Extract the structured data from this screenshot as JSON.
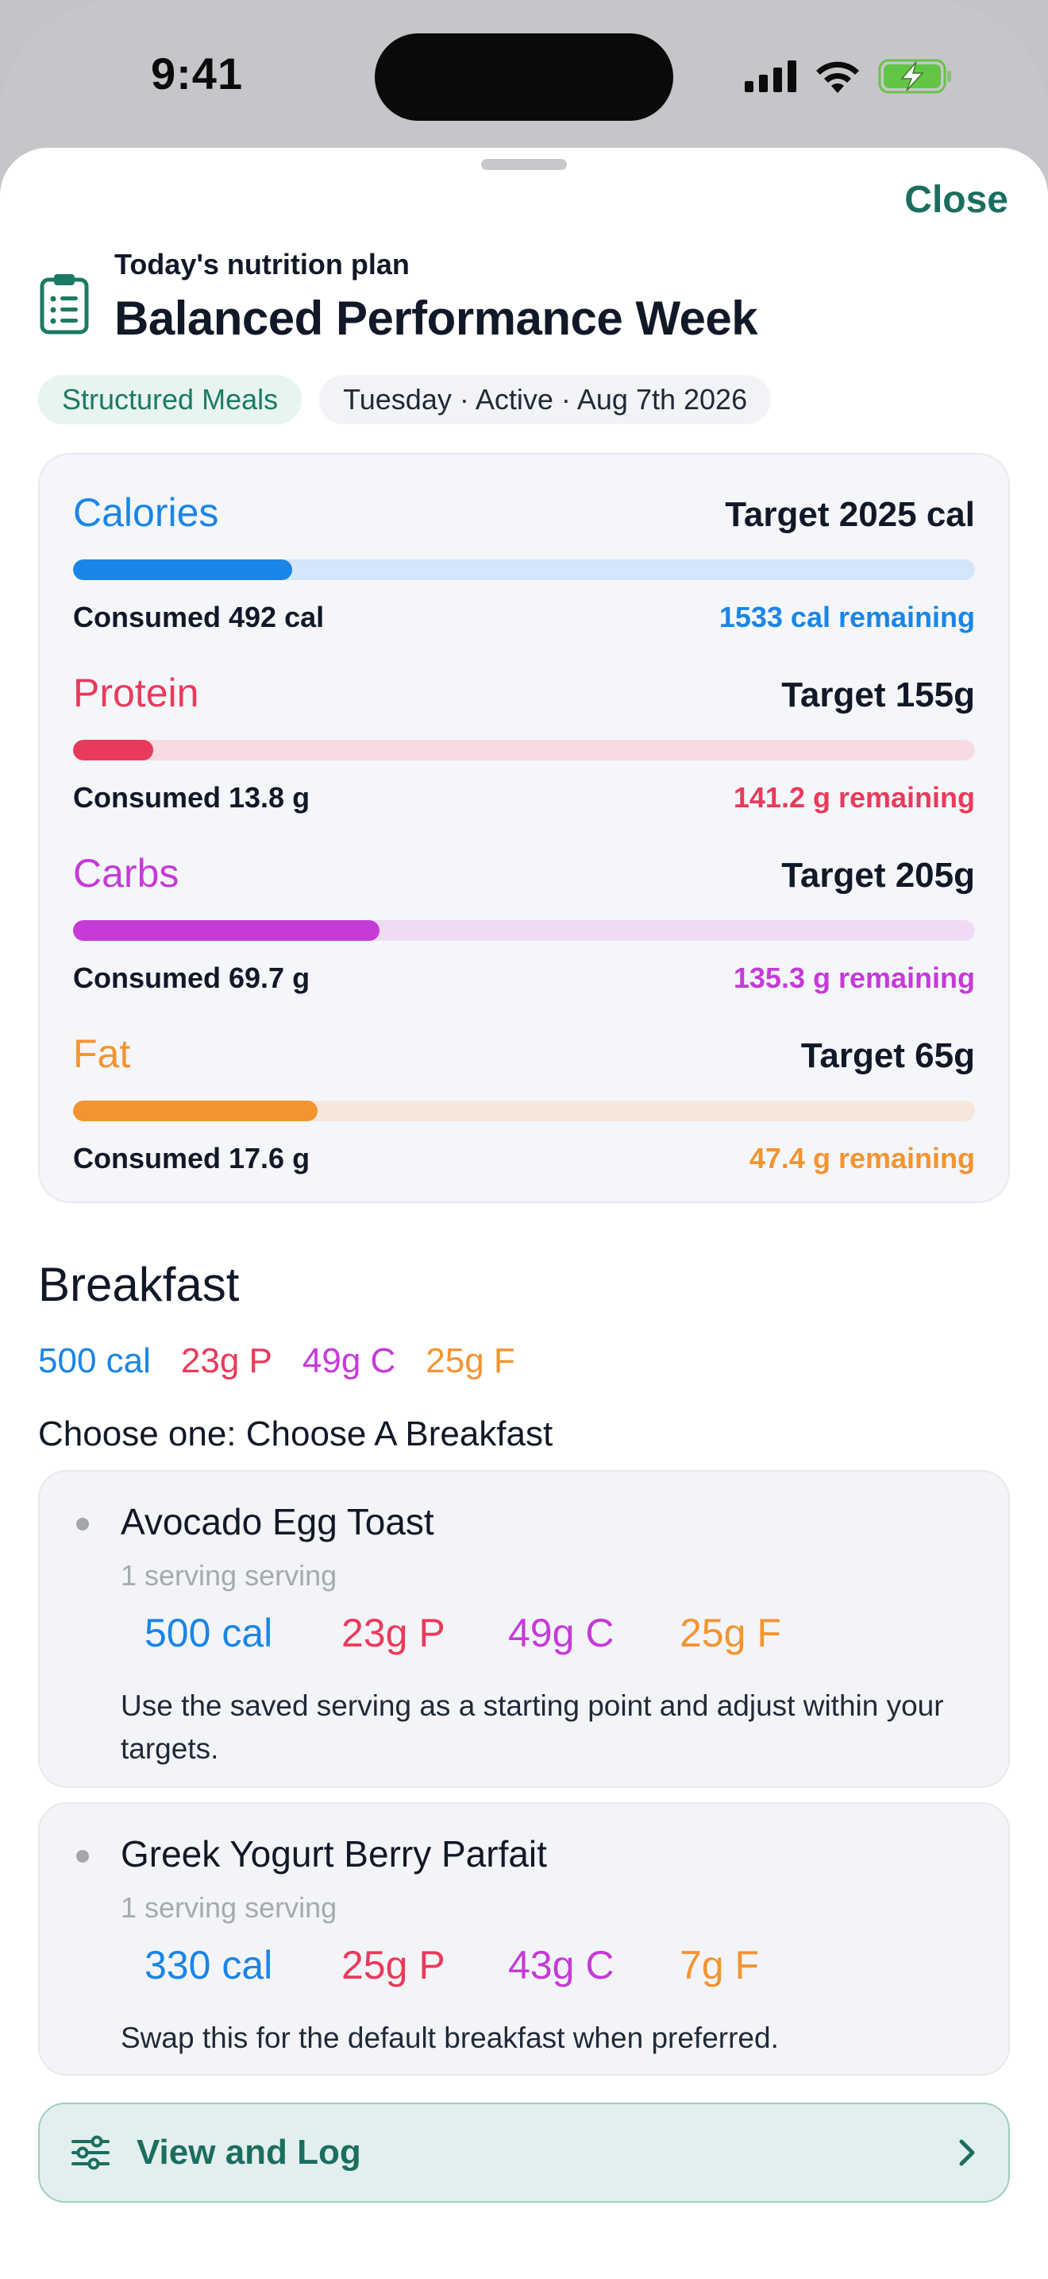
{
  "status_bar": {
    "time": "9:41"
  },
  "sheet": {
    "close_label": "Close",
    "subtitle": "Today's nutrition plan",
    "title": "Balanced Performance Week",
    "chips": [
      "Structured Meals",
      "Tuesday · Active · Aug 7th 2026"
    ]
  },
  "macros": [
    {
      "name": "Calories",
      "target": "Target 2025 cal",
      "consumed": "Consumed 492 cal",
      "remaining": "1533 cal remaining",
      "progress": 0.243,
      "color": "#1a85e6",
      "track": "#d4e6fa"
    },
    {
      "name": "Protein",
      "target": "Target 155g",
      "consumed": "Consumed 13.8 g",
      "remaining": "141.2 g remaining",
      "progress": 0.089,
      "color": "#ea3a5b",
      "track": "#f8dbe2"
    },
    {
      "name": "Carbs",
      "target": "Target 205g",
      "consumed": "Consumed 69.7 g",
      "remaining": "135.3 g remaining",
      "progress": 0.34,
      "color": "#c63ad8",
      "track": "#efdcf4"
    },
    {
      "name": "Fat",
      "target": "Target 65g",
      "consumed": "Consumed 17.6 g",
      "remaining": "47.4 g remaining",
      "progress": 0.271,
      "color": "#f39431",
      "track": "#f6e7dd"
    }
  ],
  "breakfast": {
    "title": "Breakfast",
    "macros": {
      "cal": "500 cal",
      "protein": "23g P",
      "carbs": "49g C",
      "fat": "25g F"
    },
    "choose_label": "Choose one: Choose A Breakfast",
    "options": [
      {
        "name": "Avocado Egg Toast",
        "serving": "1 serving serving",
        "cal": "500 cal",
        "protein": "23g P",
        "carbs": "49g C",
        "fat": "25g F",
        "note": "Use the saved serving as a starting point and adjust within your targets."
      },
      {
        "name": "Greek Yogurt Berry Parfait",
        "serving": "1 serving serving",
        "cal": "330 cal",
        "protein": "25g P",
        "carbs": "43g C",
        "fat": "7g F",
        "note": "Swap this for the default breakfast when preferred."
      }
    ],
    "log_button": "View and Log"
  },
  "colors": {
    "calories": "#1a85e6",
    "protein": "#ea3a5b",
    "carbs": "#c63ad8",
    "fat": "#f39431",
    "accent": "#1b6e5f"
  }
}
